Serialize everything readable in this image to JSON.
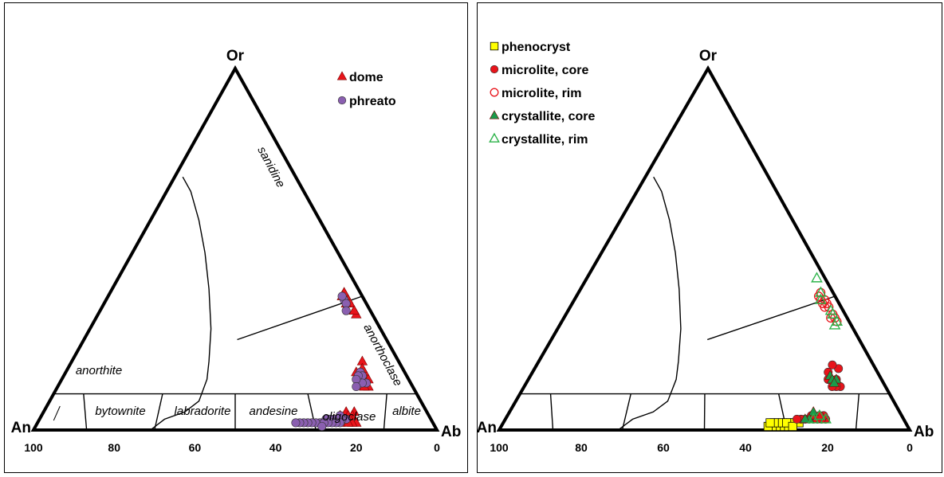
{
  "colors": {
    "dome": "#e8141b",
    "phreato": "#8a5fb0",
    "phenocryst": "#ffff00",
    "microlite": "#e8141b",
    "crystallite": "#1a9a4a",
    "crystallite_rim": "#2db34a",
    "outline": "#000000"
  },
  "chart_data": [
    {
      "type": "scatter",
      "subtype": "ternary",
      "vertices": {
        "top": "Or",
        "left": "An",
        "right": "Ab"
      },
      "bottom_axis_ticks": [
        "100",
        "80",
        "60",
        "40",
        "20",
        "0"
      ],
      "field_labels": [
        "sanidine",
        "anorthoclase",
        "anorthite",
        "bytownite",
        "labradorite",
        "andesine",
        "oligoclase",
        "albite"
      ],
      "legend": {
        "placement": "top-right"
      },
      "series": [
        {
          "name": "dome",
          "marker": "triangle-filled",
          "points_an_ab_or": [
            [
              4,
              58,
              38
            ],
            [
              4,
              59,
              37
            ],
            [
              4,
              58,
              38
            ],
            [
              4,
              60,
              36
            ],
            [
              5,
              58,
              37
            ],
            [
              4,
              61,
              35
            ],
            [
              5,
              60,
              35
            ],
            [
              4,
              64,
              32
            ],
            [
              4,
              63,
              33
            ],
            [
              4,
              63,
              33
            ],
            [
              10,
              74,
              16
            ],
            [
              11,
              73,
              16
            ],
            [
              11,
              74,
              15
            ],
            [
              12,
              72,
              16
            ],
            [
              10,
              76,
              14
            ],
            [
              11,
              77,
              12
            ],
            [
              9,
              72,
              19
            ],
            [
              10,
              73,
              17
            ],
            [
              13,
              74,
              13
            ],
            [
              12,
              76,
              12
            ],
            [
              18,
              77,
              5
            ],
            [
              19,
              77,
              4
            ],
            [
              21,
              76,
              3
            ],
            [
              22,
              74,
              4
            ],
            [
              20,
              75,
              5
            ],
            [
              23,
              74,
              3
            ],
            [
              24,
              73,
              3
            ],
            [
              19,
              79,
              2
            ],
            [
              20,
              78,
              2
            ],
            [
              22,
              75,
              3
            ],
            [
              21,
              77,
              2
            ],
            [
              25,
              73,
              2
            ],
            [
              26,
              72,
              2
            ],
            [
              23,
              75,
              2
            ],
            [
              20,
              76,
              4
            ]
          ]
        },
        {
          "name": "phreato",
          "marker": "circle-filled",
          "points_an_ab_or": [
            [
              5,
              59,
              36
            ],
            [
              5,
              58,
              37
            ],
            [
              5,
              60,
              35
            ],
            [
              6,
              61,
              33
            ],
            [
              11,
              73,
              16
            ],
            [
              11,
              74,
              15
            ],
            [
              12,
              73,
              15
            ],
            [
              13,
              74,
              13
            ],
            [
              11,
              76,
              13
            ],
            [
              12,
              75,
              13
            ],
            [
              13,
              73,
              14
            ],
            [
              14,
              74,
              12
            ],
            [
              21,
              76,
              3
            ],
            [
              22,
              75,
              3
            ],
            [
              23,
              74,
              3
            ],
            [
              24,
              73,
              3
            ],
            [
              25,
              72,
              3
            ],
            [
              26,
              71,
              3
            ],
            [
              27,
              71,
              2
            ],
            [
              28,
              70,
              2
            ],
            [
              29,
              69,
              2
            ],
            [
              30,
              68,
              2
            ],
            [
              31,
              67,
              2
            ],
            [
              32,
              66,
              2
            ],
            [
              33,
              65,
              2
            ],
            [
              34,
              64,
              2
            ],
            [
              22,
              74,
              4
            ],
            [
              23,
              75,
              2
            ],
            [
              24,
              74,
              2
            ],
            [
              25,
              73,
              2
            ],
            [
              26,
              72,
              2
            ],
            [
              27,
              71,
              2
            ],
            [
              28,
              71,
              1
            ]
          ]
        }
      ]
    },
    {
      "type": "scatter",
      "subtype": "ternary",
      "vertices": {
        "top": "Or",
        "left": "An",
        "right": "Ab"
      },
      "bottom_axis_ticks": [
        "100",
        "80",
        "60",
        "40",
        "20",
        "0"
      ],
      "legend": {
        "placement": "top-left"
      },
      "series": [
        {
          "name": "phenocryst",
          "marker": "square-filled",
          "points_an_ab_or": [
            [
              31,
              68,
              1
            ],
            [
              32,
              67,
              1
            ],
            [
              33,
              66,
              1
            ],
            [
              34,
              65,
              1
            ],
            [
              30,
              69,
              1
            ],
            [
              29,
              70,
              1
            ],
            [
              31,
              67,
              2
            ],
            [
              32,
              66,
              2
            ],
            [
              33,
              65,
              2
            ],
            [
              28,
              70,
              2
            ],
            [
              27,
              71,
              2
            ],
            [
              26,
              72,
              2
            ],
            [
              30,
              68,
              2
            ],
            [
              29,
              69,
              2
            ],
            [
              28,
              71,
              1
            ]
          ]
        },
        {
          "name": "microlite, core",
          "marker": "circle-filled",
          "points_an_ab_or": [
            [
              19,
              78,
              3
            ],
            [
              20,
              77,
              3
            ],
            [
              21,
              76,
              3
            ],
            [
              22,
              75,
              3
            ],
            [
              23,
              74,
              3
            ],
            [
              24,
              73,
              3
            ],
            [
              25,
              72,
              3
            ],
            [
              26,
              71,
              3
            ],
            [
              19,
              77,
              4
            ],
            [
              20,
              76,
              4
            ],
            [
              22,
              74,
              4
            ],
            [
              11,
              77,
              12
            ],
            [
              12,
              76,
              12
            ],
            [
              13,
              75,
              12
            ],
            [
              11,
              75,
              14
            ],
            [
              13,
              73,
              14
            ],
            [
              9,
              74,
              17
            ],
            [
              10,
              72,
              18
            ],
            [
              12,
              72,
              16
            ]
          ]
        },
        {
          "name": "microlite, rim",
          "marker": "circle-open",
          "points_an_ab_or": [
            [
              3,
              59,
              38
            ],
            [
              4,
              59,
              37
            ],
            [
              4,
              60,
              36
            ],
            [
              3,
              61,
              36
            ],
            [
              4,
              61,
              35
            ],
            [
              3,
              62,
              35
            ],
            [
              3,
              63,
              34
            ],
            [
              4,
              62,
              34
            ],
            [
              3,
              65,
              32
            ],
            [
              3,
              66,
              31
            ],
            [
              4,
              65,
              31
            ],
            [
              3,
              67,
              30
            ]
          ]
        },
        {
          "name": "crystallite, core",
          "marker": "triangle-filled",
          "points_an_ab_or": [
            [
              12,
              73,
              15
            ],
            [
              12,
              74,
              14
            ],
            [
              11,
              75,
              14
            ],
            [
              12,
              75,
              13
            ],
            [
              21,
              74,
              5
            ],
            [
              23,
              74,
              3
            ],
            [
              24,
              73,
              3
            ]
          ]
        },
        {
          "name": "crystallite, rim",
          "marker": "triangle-open",
          "points_an_ab_or": [
            [
              2,
              56,
              42
            ],
            [
              3,
              59,
              38
            ],
            [
              4,
              60,
              36
            ],
            [
              3,
              64,
              33
            ],
            [
              3,
              65,
              32
            ],
            [
              3,
              67,
              30
            ],
            [
              4,
              67,
              29
            ],
            [
              20,
              76,
              4
            ],
            [
              19,
              78,
              3
            ],
            [
              22,
              75,
              3
            ]
          ]
        }
      ]
    }
  ]
}
